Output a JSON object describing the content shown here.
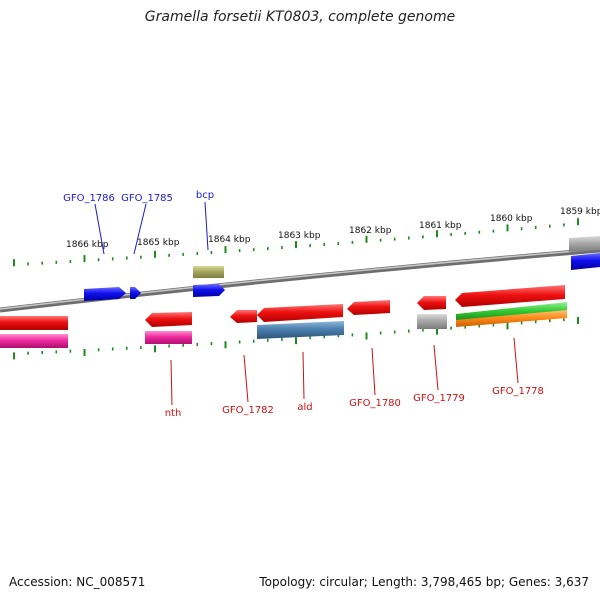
{
  "title": "Gramella forsetii KT0803, complete genome",
  "accession": "Accession: NC_008571",
  "summary": "Topology: circular; Length: 3,798,465 bp; Genes: 3,637",
  "colors": {
    "backbone": "#8c8c8c",
    "tick": "#1f8a1f",
    "fwd_label": "#1a1acc",
    "rev_label": "#cc1111",
    "cds_forward": "#1010ee",
    "cds_reverse": "#ee1111",
    "misc": "#a8a860",
    "gray": "#a9a9a9",
    "pink": "#ee2aa0",
    "steel": "#4a7fb0",
    "green": "#33cc33",
    "orange": "#ff8c1a"
  },
  "scale_labels": [
    "1866 kbp",
    "1865 kbp",
    "1864 kbp",
    "1863 kbp",
    "1862 kbp",
    "1861 kbp",
    "1860 kbp",
    "1859 kbp"
  ],
  "forward_labels": [
    "GFO_1786",
    "GFO_1785",
    "bcp"
  ],
  "reverse_labels": [
    "nth",
    "GFO_1782",
    "ald",
    "GFO_1780",
    "GFO_1779",
    "GFO_1778"
  ]
}
